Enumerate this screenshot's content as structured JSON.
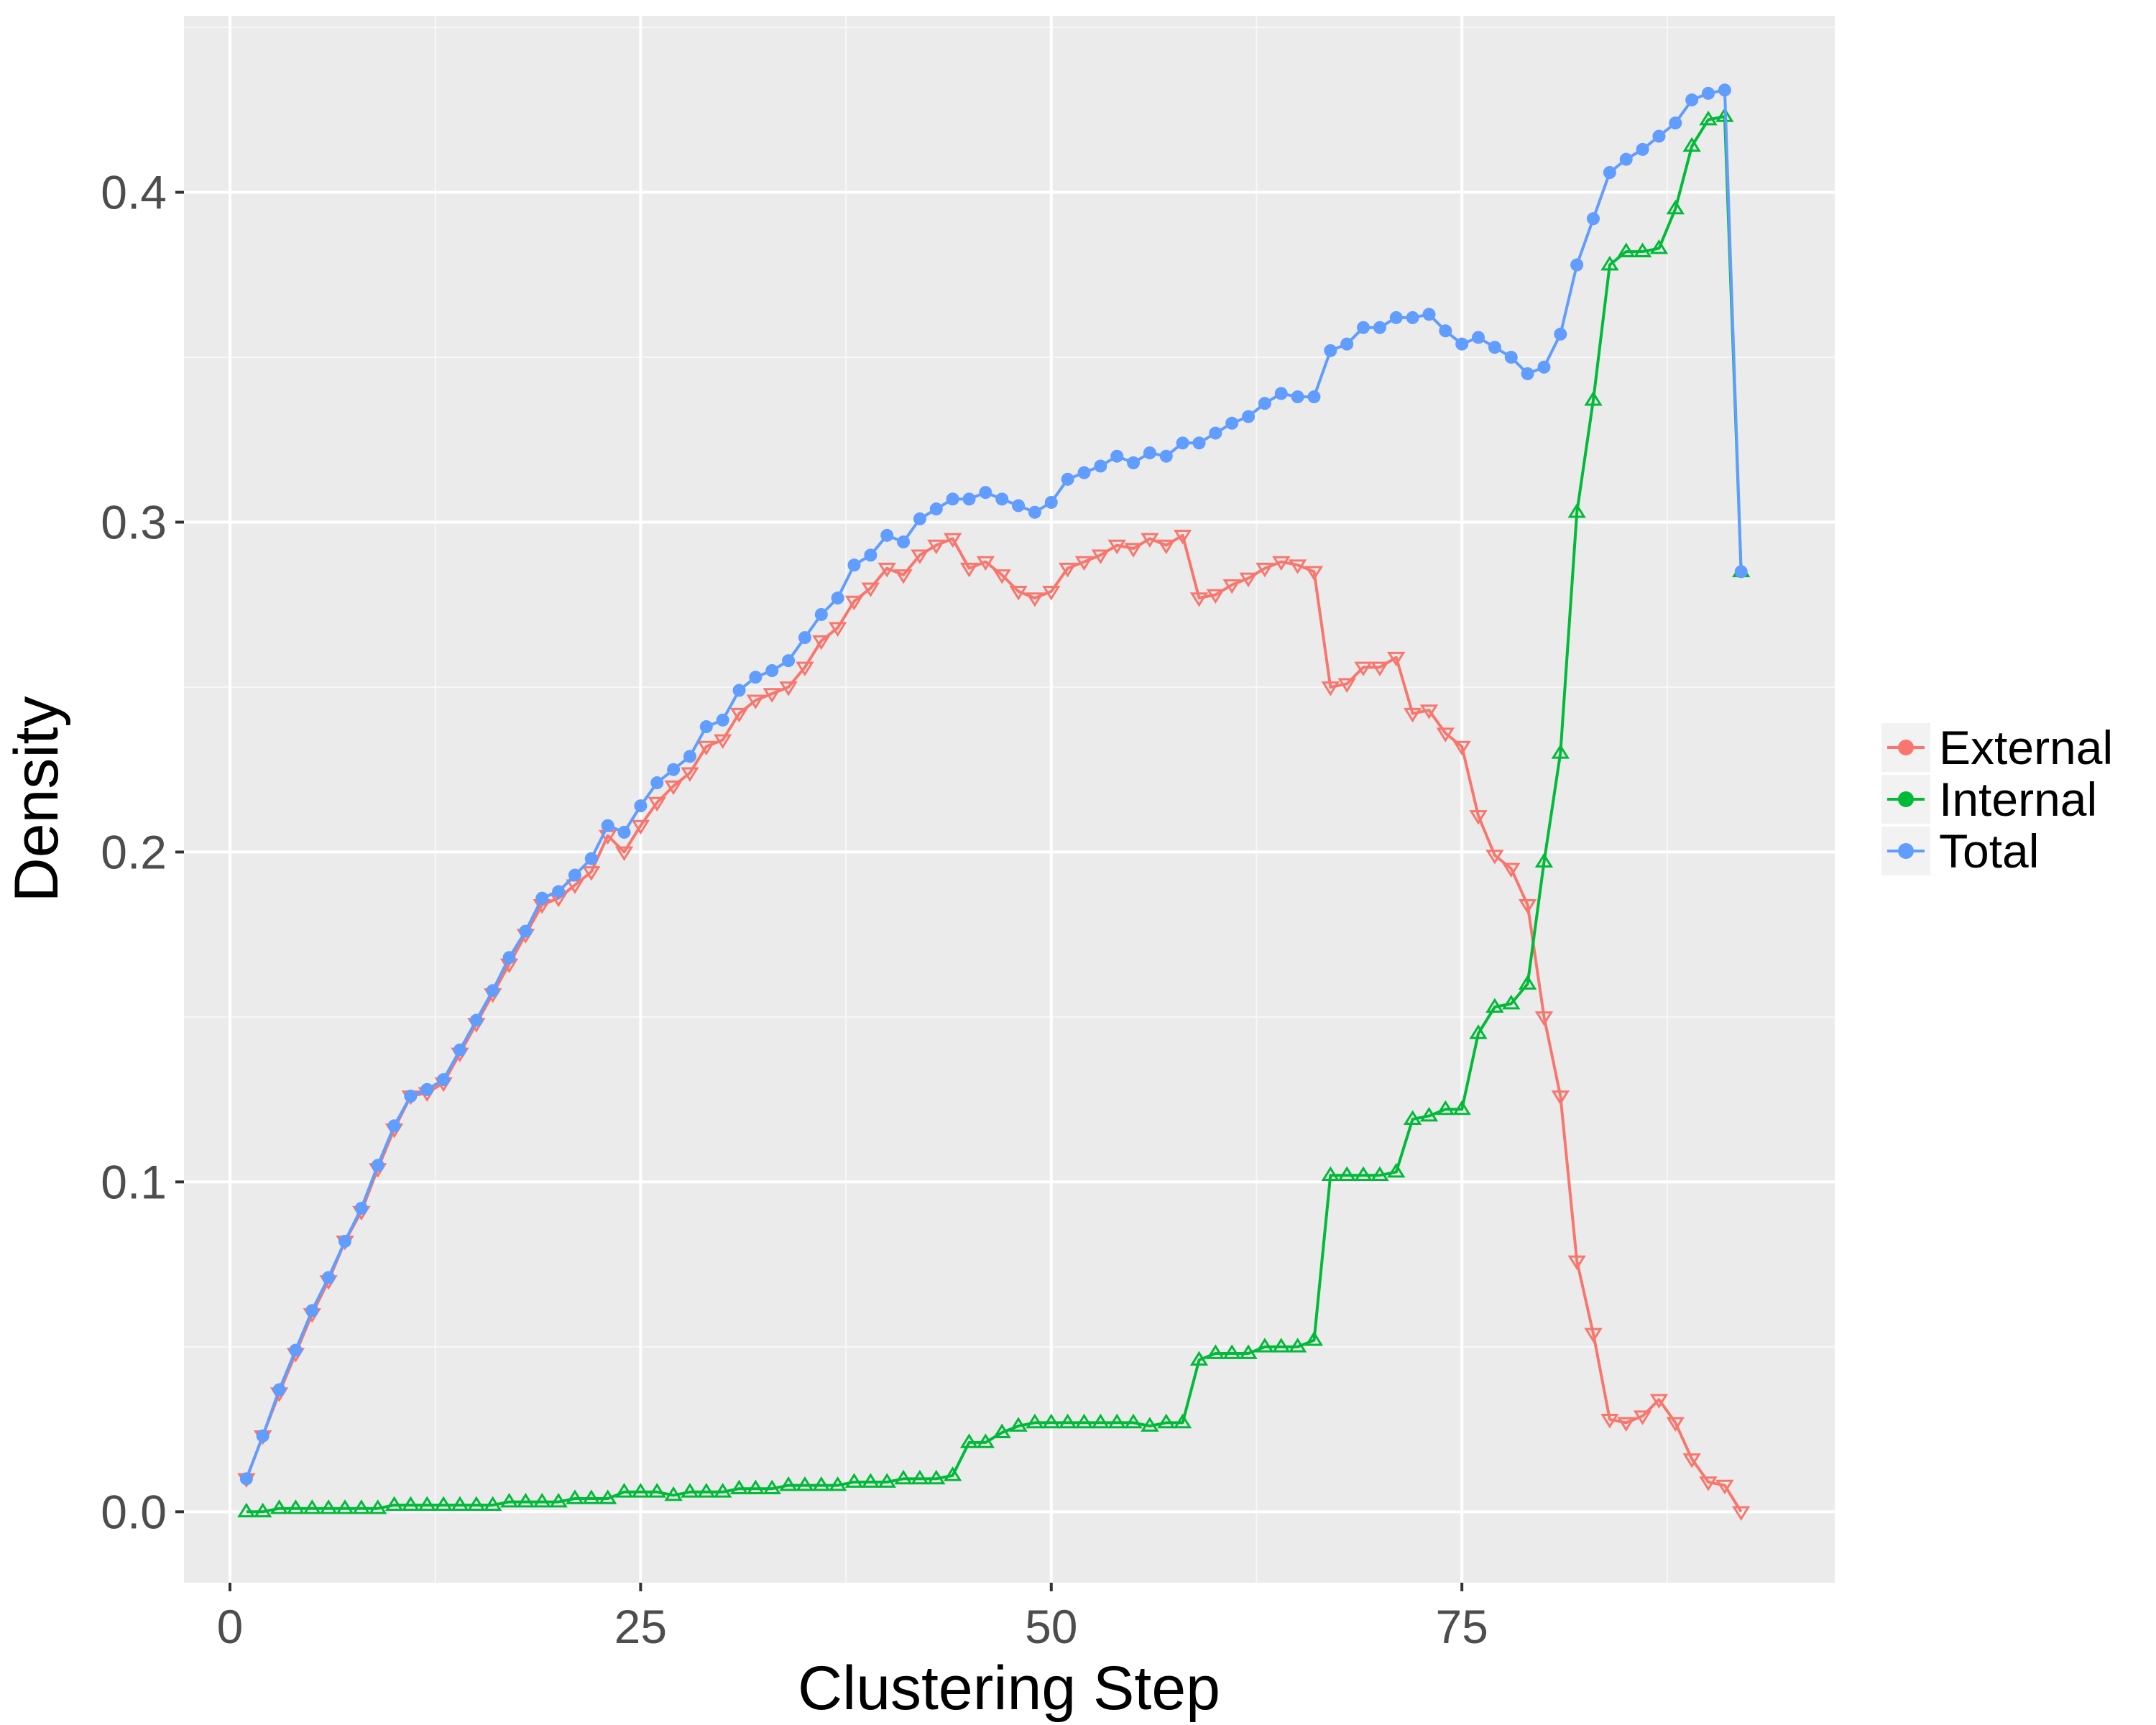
{
  "chart_data": {
    "type": "line",
    "xlabel": "Clustering Step",
    "ylabel": "Density",
    "xlim": [
      -2.8,
      97.7
    ],
    "ylim": [
      -0.0215,
      0.4535
    ],
    "x_ticks": [
      0,
      25,
      50,
      75
    ],
    "x_tick_labels": [
      "0",
      "25",
      "50",
      "75"
    ],
    "y_ticks": [
      0.0,
      0.1,
      0.2,
      0.3,
      0.4
    ],
    "y_tick_labels": [
      "0.0",
      "0.1",
      "0.2",
      "0.3",
      "0.4"
    ],
    "grid": true,
    "legend_position": "right",
    "x": [
      1,
      2,
      3,
      4,
      5,
      6,
      7,
      8,
      9,
      10,
      11,
      12,
      13,
      14,
      15,
      16,
      17,
      18,
      19,
      20,
      21,
      22,
      23,
      24,
      25,
      26,
      27,
      28,
      29,
      30,
      31,
      32,
      33,
      34,
      35,
      36,
      37,
      38,
      39,
      40,
      41,
      42,
      43,
      44,
      45,
      46,
      47,
      48,
      49,
      50,
      51,
      52,
      53,
      54,
      55,
      56,
      57,
      58,
      59,
      60,
      61,
      62,
      63,
      64,
      65,
      66,
      67,
      68,
      69,
      70,
      71,
      72,
      73,
      74,
      75,
      76,
      77,
      78,
      79,
      80,
      81,
      82,
      83,
      84,
      85,
      86,
      87,
      88,
      89,
      90,
      91,
      92
    ],
    "series": [
      {
        "name": "External",
        "color": "#F8766D",
        "marker": "triangle-down",
        "values": [
          0.01,
          0.023,
          0.036,
          0.048,
          0.06,
          0.07,
          0.082,
          0.091,
          0.104,
          0.116,
          0.126,
          0.127,
          0.13,
          0.139,
          0.148,
          0.157,
          0.166,
          0.175,
          0.184,
          0.186,
          0.19,
          0.194,
          0.205,
          0.2,
          0.208,
          0.215,
          0.22,
          0.224,
          0.232,
          0.234,
          0.242,
          0.246,
          0.248,
          0.25,
          0.256,
          0.264,
          0.268,
          0.276,
          0.28,
          0.286,
          0.284,
          0.29,
          0.293,
          0.295,
          0.286,
          0.288,
          0.284,
          0.279,
          0.277,
          0.279,
          0.286,
          0.288,
          0.29,
          0.293,
          0.292,
          0.295,
          0.293,
          0.296,
          0.277,
          0.278,
          0.281,
          0.283,
          0.286,
          0.288,
          0.287,
          0.285,
          0.25,
          0.251,
          0.256,
          0.256,
          0.259,
          0.242,
          0.243,
          0.236,
          0.232,
          0.211,
          0.199,
          0.195,
          0.184,
          0.15,
          0.126,
          0.076,
          0.054,
          0.028,
          0.027,
          0.029,
          0.034,
          0.027,
          0.016,
          0.009,
          0.008,
          0.0
        ]
      },
      {
        "name": "Internal",
        "color": "#00BA38",
        "marker": "triangle-up",
        "values": [
          0.0,
          0.0,
          0.001,
          0.001,
          0.001,
          0.001,
          0.001,
          0.001,
          0.001,
          0.002,
          0.002,
          0.002,
          0.002,
          0.002,
          0.002,
          0.002,
          0.003,
          0.003,
          0.003,
          0.003,
          0.004,
          0.004,
          0.004,
          0.006,
          0.006,
          0.006,
          0.005,
          0.006,
          0.006,
          0.006,
          0.007,
          0.007,
          0.007,
          0.008,
          0.008,
          0.008,
          0.008,
          0.009,
          0.009,
          0.009,
          0.01,
          0.01,
          0.01,
          0.011,
          0.021,
          0.021,
          0.024,
          0.026,
          0.027,
          0.027,
          0.027,
          0.027,
          0.027,
          0.027,
          0.027,
          0.026,
          0.027,
          0.027,
          0.046,
          0.048,
          0.048,
          0.048,
          0.05,
          0.05,
          0.05,
          0.052,
          0.102,
          0.102,
          0.102,
          0.102,
          0.103,
          0.119,
          0.12,
          0.122,
          0.122,
          0.145,
          0.153,
          0.154,
          0.16,
          0.197,
          0.23,
          0.303,
          0.337,
          0.378,
          0.382,
          0.382,
          0.383,
          0.395,
          0.414,
          0.422,
          0.423,
          0.285
        ]
      },
      {
        "name": "Total",
        "color": "#619CFF",
        "marker": "circle",
        "values": [
          0.01,
          0.023,
          0.037,
          0.049,
          0.061,
          0.071,
          0.082,
          0.092,
          0.105,
          0.117,
          0.126,
          0.128,
          0.131,
          0.14,
          0.149,
          0.158,
          0.168,
          0.176,
          0.186,
          0.188,
          0.193,
          0.198,
          0.208,
          0.206,
          0.214,
          0.221,
          0.225,
          0.229,
          0.238,
          0.24,
          0.249,
          0.253,
          0.255,
          0.258,
          0.265,
          0.272,
          0.277,
          0.287,
          0.29,
          0.296,
          0.294,
          0.301,
          0.304,
          0.307,
          0.307,
          0.309,
          0.307,
          0.305,
          0.303,
          0.306,
          0.313,
          0.315,
          0.317,
          0.32,
          0.318,
          0.321,
          0.32,
          0.324,
          0.324,
          0.327,
          0.33,
          0.332,
          0.336,
          0.339,
          0.338,
          0.338,
          0.352,
          0.354,
          0.359,
          0.359,
          0.362,
          0.362,
          0.363,
          0.358,
          0.354,
          0.356,
          0.353,
          0.35,
          0.345,
          0.347,
          0.357,
          0.378,
          0.392,
          0.406,
          0.41,
          0.413,
          0.417,
          0.421,
          0.428,
          0.43,
          0.431,
          0.285
        ]
      }
    ]
  }
}
